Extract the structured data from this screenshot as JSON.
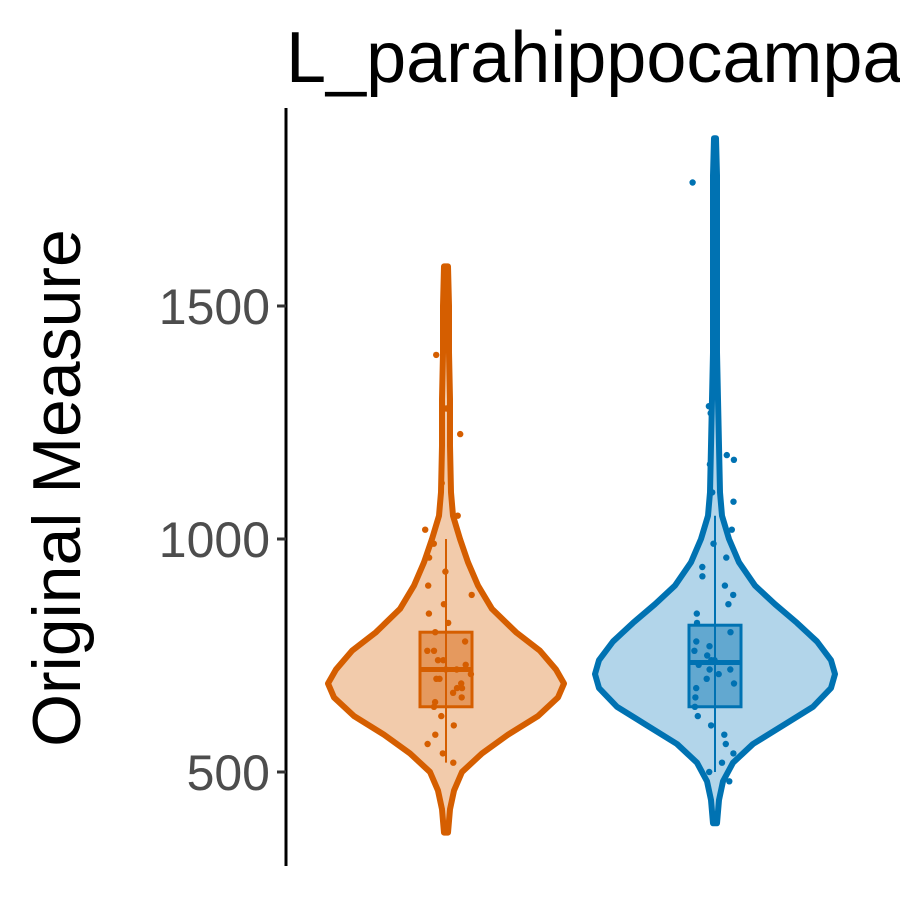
{
  "chart_data": {
    "type": "violin",
    "title": "L_parahippocampa",
    "xlabel": "",
    "ylabel": "Original Measure",
    "ylim": [
      300,
      1950
    ],
    "yticks": [
      500,
      1000,
      1500
    ],
    "grid": false,
    "legend": "none",
    "series": [
      {
        "color": "#d55e00",
        "fill": "#f2cbab",
        "min": 370,
        "max": 1585,
        "box": {
          "q1": 640,
          "median": 720,
          "q3": 800,
          "low": 520,
          "high": 1000
        },
        "density": [
          [
            370,
            2
          ],
          [
            420,
            4
          ],
          [
            460,
            8
          ],
          [
            500,
            16
          ],
          [
            540,
            36
          ],
          [
            580,
            62
          ],
          [
            620,
            92
          ],
          [
            660,
            112
          ],
          [
            690,
            118
          ],
          [
            720,
            110
          ],
          [
            760,
            94
          ],
          [
            800,
            70
          ],
          [
            850,
            46
          ],
          [
            900,
            32
          ],
          [
            950,
            22
          ],
          [
            1000,
            14
          ],
          [
            1050,
            7
          ],
          [
            1100,
            5
          ],
          [
            1200,
            4
          ],
          [
            1300,
            4
          ],
          [
            1400,
            3
          ],
          [
            1500,
            3
          ],
          [
            1585,
            2
          ]
        ],
        "points": [
          1495,
          1395,
          1280,
          1225,
          1120,
          1050,
          1020,
          990,
          960,
          930,
          900,
          880,
          860,
          840,
          820,
          800,
          780,
          760,
          740,
          720,
          700,
          680,
          660,
          640,
          620,
          600,
          580,
          560,
          540,
          520,
          700,
          720,
          690,
          740,
          650,
          760,
          680,
          710,
          730,
          670
        ]
      },
      {
        "color": "#0072b2",
        "fill": "#b2d5ea",
        "min": 390,
        "max": 1860,
        "box": {
          "q1": 640,
          "median": 735,
          "q3": 815,
          "low": 500,
          "high": 1050
        },
        "density": [
          [
            390,
            2
          ],
          [
            440,
            4
          ],
          [
            480,
            8
          ],
          [
            520,
            18
          ],
          [
            560,
            38
          ],
          [
            600,
            68
          ],
          [
            640,
            98
          ],
          [
            680,
            116
          ],
          [
            710,
            120
          ],
          [
            740,
            116
          ],
          [
            780,
            102
          ],
          [
            820,
            82
          ],
          [
            860,
            60
          ],
          [
            900,
            40
          ],
          [
            950,
            24
          ],
          [
            1000,
            14
          ],
          [
            1050,
            7
          ],
          [
            1100,
            5
          ],
          [
            1200,
            4
          ],
          [
            1300,
            3
          ],
          [
            1400,
            2
          ],
          [
            1500,
            2
          ],
          [
            1600,
            2
          ],
          [
            1700,
            2
          ],
          [
            1780,
            2
          ],
          [
            1860,
            1
          ]
        ],
        "points": [
          1765,
          1285,
          1270,
          1180,
          1170,
          1160,
          1100,
          1080,
          1020,
          990,
          960,
          940,
          920,
          900,
          880,
          860,
          840,
          820,
          800,
          780,
          760,
          740,
          720,
          700,
          680,
          660,
          640,
          620,
          600,
          580,
          560,
          540,
          520,
          500,
          480,
          730,
          750,
          710,
          770,
          690,
          740,
          720
        ]
      }
    ]
  }
}
